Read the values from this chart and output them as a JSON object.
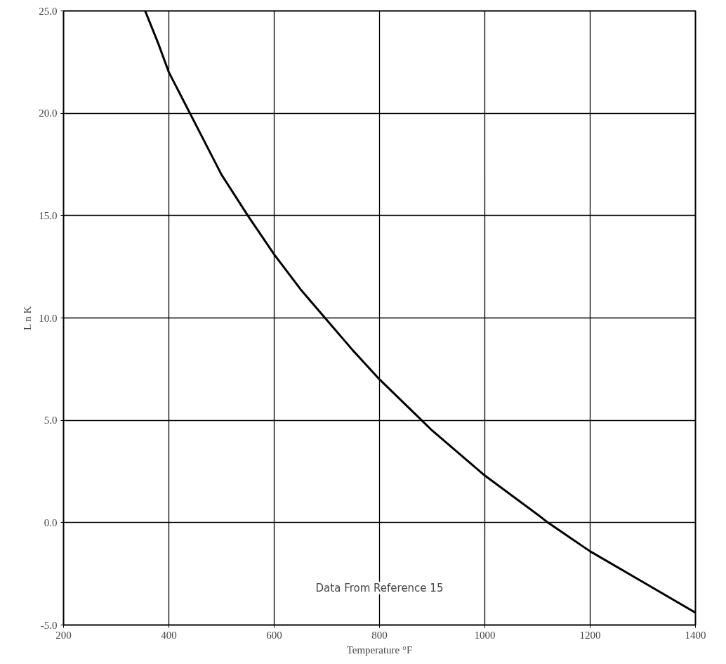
{
  "chart_data": {
    "type": "line",
    "xlabel": "Temperature °F",
    "ylabel": "L n K",
    "annotations": [
      "Data From Reference 15"
    ],
    "series": [
      {
        "color": "#000000",
        "x": [
          355,
          380,
          400,
          440,
          500,
          550,
          600,
          650,
          700,
          750,
          800,
          880,
          900,
          1000,
          1100,
          1120,
          1200,
          1300,
          1400
        ],
        "values": [
          25,
          23.4,
          22,
          20,
          17,
          15,
          13.1,
          11.4,
          9.9,
          8.4,
          7.0,
          5,
          4.5,
          2.3,
          0.4,
          0,
          -1.4,
          -2.9,
          -4.4
        ]
      }
    ],
    "xlim": [
      200,
      1400
    ],
    "ylim": [
      -5,
      25
    ],
    "xticks": [
      200,
      400,
      600,
      800,
      1000,
      1200,
      1400
    ],
    "yticks": [
      {
        "value": -5,
        "label": "-5.0"
      },
      {
        "value": 0,
        "label": "0.0"
      },
      {
        "value": 5,
        "label": "5.0"
      },
      {
        "value": 10,
        "label": "10.0"
      },
      {
        "value": 15,
        "label": "15.0"
      },
      {
        "value": 20,
        "label": "20.0"
      },
      {
        "value": 25,
        "label": "25.0"
      }
    ],
    "grid": true,
    "marker": "none",
    "line_style": "solid"
  }
}
